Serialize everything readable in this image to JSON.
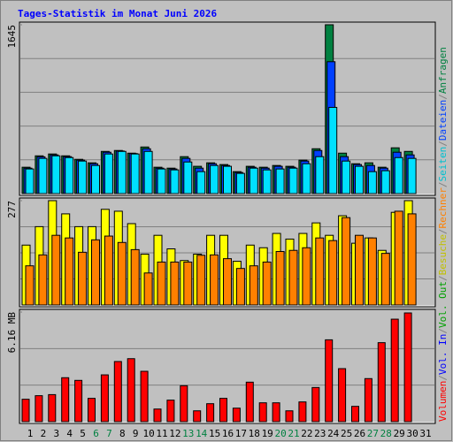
{
  "title": "Tages-Statistik im Monat Juni 2026",
  "legend_separator": "/",
  "chart_data": [
    {
      "type": "bar",
      "ylim": [
        0,
        1645
      ],
      "yticks": [
        1645
      ],
      "series": [
        {
          "name": "Anfragen",
          "color": "#008040",
          "values": [
            257,
            368,
            386,
            368,
            334,
            300,
            411,
            420,
            394,
            454,
            257,
            248,
            360,
            266,
            300,
            283,
            214,
            266,
            257,
            274,
            266,
            326,
            437,
            1645,
            394,
            291,
            300,
            257,
            446,
            411,
            null
          ]
        },
        {
          "name": "Dateien",
          "color": "#0040ff",
          "values": [
            248,
            358,
            377,
            360,
            326,
            291,
            403,
            415,
            390,
            437,
            248,
            240,
            343,
            248,
            291,
            274,
            206,
            257,
            248,
            266,
            257,
            317,
            420,
            1285,
            360,
            283,
            274,
            248,
            403,
            377,
            null
          ]
        },
        {
          "name": "Seiten",
          "color": "#00e0ff",
          "values": [
            240,
            343,
            368,
            351,
            317,
            274,
            386,
            411,
            386,
            411,
            240,
            231,
            308,
            214,
            274,
            266,
            197,
            248,
            231,
            240,
            248,
            291,
            360,
            840,
            317,
            266,
            214,
            223,
            351,
            343,
            null
          ]
        }
      ]
    },
    {
      "type": "bar",
      "ylim": [
        0,
        277
      ],
      "yticks": [
        277
      ],
      "series": [
        {
          "name": "Besuche",
          "color": "#ffff00",
          "values": [
            159,
            208,
            277,
            242,
            208,
            208,
            254,
            249,
            216,
            135,
            185,
            149,
            118,
            135,
            185,
            185,
            116,
            159,
            152,
            190,
            175,
            190,
            218,
            185,
            237,
            164,
            178,
            145,
            246,
            277,
            null
          ]
        },
        {
          "name": "Rechner",
          "color": "#ff8000",
          "values": [
            104,
            133,
            185,
            178,
            140,
            173,
            183,
            166,
            147,
            85,
            114,
            114,
            114,
            132,
            133,
            123,
            97,
            104,
            114,
            142,
            145,
            152,
            178,
            171,
            232,
            185,
            178,
            137,
            249,
            242,
            null
          ]
        }
      ]
    },
    {
      "type": "bar",
      "ylim": [
        0,
        6.16
      ],
      "yticks": [
        {
          "value": 6.16,
          "label": "6.16 MB"
        }
      ],
      "categories": [
        "1",
        "2",
        "3",
        "4",
        "5",
        "6",
        "7",
        "8",
        "9",
        "10",
        "11",
        "12",
        "13",
        "14",
        "15",
        "16",
        "17",
        "18",
        "19",
        "20",
        "21",
        "22",
        "23",
        "24",
        "25",
        "26",
        "27",
        "28",
        "29",
        "30",
        "31"
      ],
      "category_colors": [
        "#000000",
        "#000000",
        "#000000",
        "#000000",
        "#000000",
        "#008040",
        "#008040",
        "#000000",
        "#000000",
        "#000000",
        "#000000",
        "#000000",
        "#008040",
        "#008040",
        "#000000",
        "#000000",
        "#000000",
        "#000000",
        "#000000",
        "#008040",
        "#008040",
        "#000000",
        "#000000",
        "#000000",
        "#000000",
        "#000000",
        "#008040",
        "#008040",
        "#000000",
        "#000000",
        "#000000"
      ],
      "series": [
        {
          "name": "Volumen",
          "color": "#ff0000",
          "values": [
            1.26,
            1.46,
            1.52,
            2.47,
            2.32,
            1.31,
            2.63,
            3.38,
            3.54,
            2.83,
            0.71,
            1.21,
            2.02,
            0.61,
            1.01,
            1.31,
            0.76,
            2.22,
            1.06,
            1.06,
            0.61,
            1.11,
            1.92,
            4.6,
            2.98,
            0.86,
            2.42,
            4.44,
            5.76,
            6.11,
            null
          ]
        },
        {
          "name": "Vol. In",
          "color": "#0000ff",
          "values": [
            null,
            null,
            null,
            null,
            null,
            null,
            null,
            null,
            null,
            null,
            null,
            null,
            null,
            null,
            null,
            null,
            null,
            null,
            null,
            null,
            null,
            null,
            null,
            null,
            null,
            null,
            null,
            null,
            null,
            null,
            null
          ]
        },
        {
          "name": "Vol. Out",
          "color": "#00a000",
          "values": [
            null,
            null,
            null,
            null,
            null,
            null,
            null,
            null,
            null,
            null,
            null,
            null,
            null,
            null,
            null,
            null,
            null,
            null,
            null,
            null,
            null,
            null,
            null,
            null,
            null,
            null,
            null,
            null,
            null,
            null,
            null
          ]
        }
      ]
    }
  ]
}
